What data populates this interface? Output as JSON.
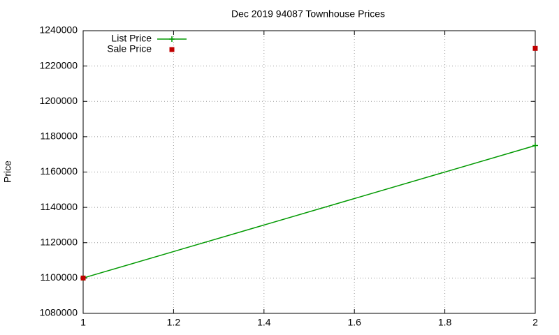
{
  "chart_data": {
    "type": "line",
    "title": "Dec 2019 94087 Townhouse Prices",
    "y_label": "Price",
    "x": [
      1,
      2
    ],
    "series": [
      {
        "name": "List Price",
        "color": "#009900",
        "style": "linespoints",
        "values": [
          1100000,
          1175000
        ]
      },
      {
        "name": "Sale Price",
        "color": "#c00000",
        "style": "points",
        "values": [
          1100000,
          1230000
        ]
      }
    ],
    "xlim": [
      1,
      2
    ],
    "xticks": [
      1,
      1.2,
      1.4,
      1.6,
      1.8,
      2
    ],
    "ylim": [
      1080000,
      1240000
    ],
    "yticks": [
      1080000,
      1100000,
      1120000,
      1140000,
      1160000,
      1180000,
      1200000,
      1220000,
      1240000
    ],
    "grid": true,
    "legend": "top-left"
  }
}
